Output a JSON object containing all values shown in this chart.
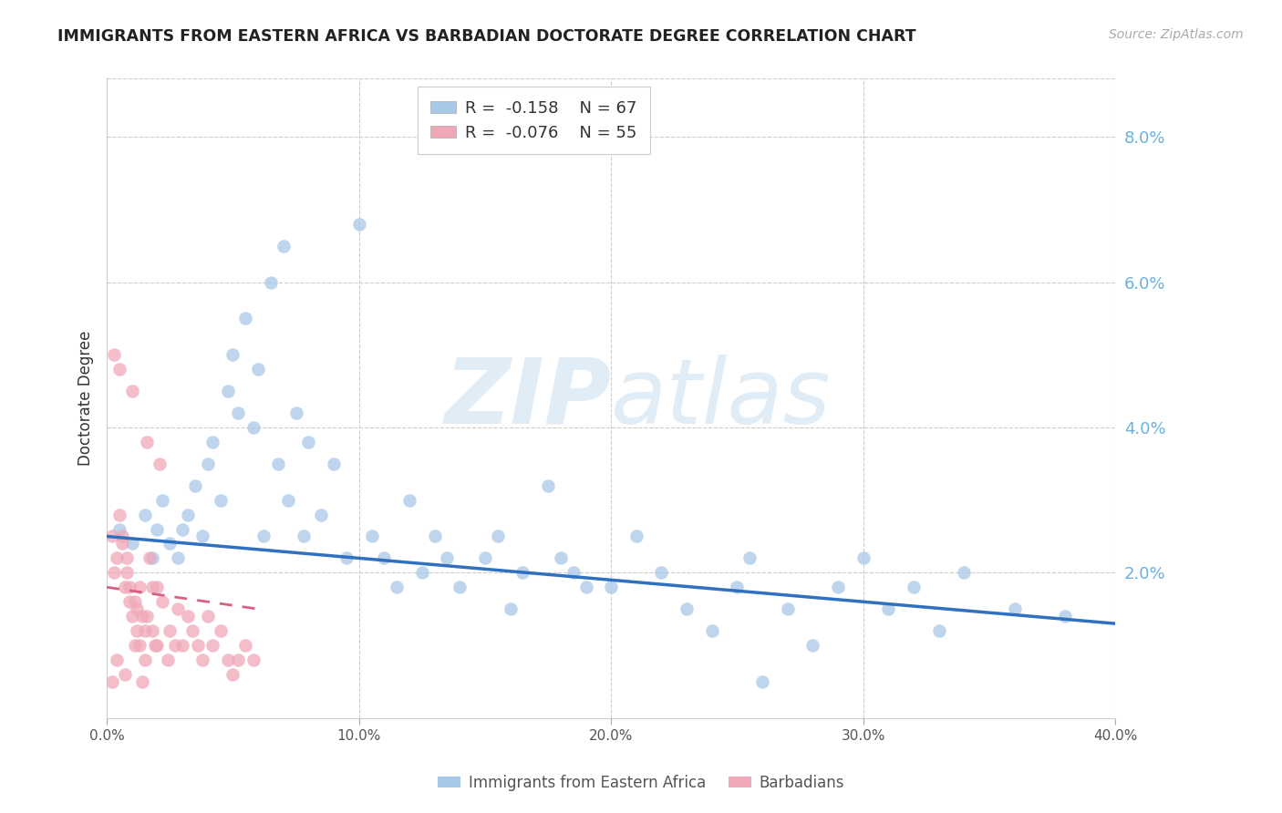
{
  "title": "IMMIGRANTS FROM EASTERN AFRICA VS BARBADIAN DOCTORATE DEGREE CORRELATION CHART",
  "source": "Source: ZipAtlas.com",
  "ylabel": "Doctorate Degree",
  "xlim": [
    0.0,
    0.4
  ],
  "ylim": [
    0.0,
    0.088
  ],
  "xticks": [
    0.0,
    0.1,
    0.2,
    0.3,
    0.4
  ],
  "xtick_labels": [
    "0.0%",
    "10.0%",
    "20.0%",
    "30.0%",
    "40.0%"
  ],
  "yticks_right": [
    0.02,
    0.04,
    0.06,
    0.08
  ],
  "ytick_right_labels": [
    "2.0%",
    "4.0%",
    "6.0%",
    "8.0%"
  ],
  "legend1_label": "Immigrants from Eastern Africa",
  "legend2_label": "Barbadians",
  "R1": -0.158,
  "N1": 67,
  "R2": -0.076,
  "N2": 55,
  "blue_color": "#a8c8e8",
  "pink_color": "#f0a8b8",
  "trend_blue": "#3070c0",
  "trend_pink": "#d86080",
  "watermark_zip": "ZIP",
  "watermark_atlas": "atlas",
  "blue_x": [
    0.005,
    0.01,
    0.015,
    0.018,
    0.02,
    0.022,
    0.025,
    0.028,
    0.03,
    0.032,
    0.035,
    0.038,
    0.04,
    0.042,
    0.045,
    0.048,
    0.05,
    0.052,
    0.055,
    0.058,
    0.06,
    0.062,
    0.065,
    0.068,
    0.07,
    0.072,
    0.075,
    0.078,
    0.08,
    0.085,
    0.09,
    0.095,
    0.1,
    0.105,
    0.11,
    0.115,
    0.12,
    0.125,
    0.13,
    0.135,
    0.14,
    0.15,
    0.155,
    0.16,
    0.165,
    0.175,
    0.18,
    0.185,
    0.19,
    0.2,
    0.21,
    0.22,
    0.23,
    0.24,
    0.25,
    0.255,
    0.26,
    0.27,
    0.28,
    0.29,
    0.3,
    0.31,
    0.32,
    0.33,
    0.34,
    0.36,
    0.38
  ],
  "blue_y": [
    0.026,
    0.024,
    0.028,
    0.022,
    0.026,
    0.03,
    0.024,
    0.022,
    0.026,
    0.028,
    0.032,
    0.025,
    0.035,
    0.038,
    0.03,
    0.045,
    0.05,
    0.042,
    0.055,
    0.04,
    0.048,
    0.025,
    0.06,
    0.035,
    0.065,
    0.03,
    0.042,
    0.025,
    0.038,
    0.028,
    0.035,
    0.022,
    0.068,
    0.025,
    0.022,
    0.018,
    0.03,
    0.02,
    0.025,
    0.022,
    0.018,
    0.022,
    0.025,
    0.015,
    0.02,
    0.032,
    0.022,
    0.02,
    0.018,
    0.018,
    0.025,
    0.02,
    0.015,
    0.012,
    0.018,
    0.022,
    0.005,
    0.015,
    0.01,
    0.018,
    0.022,
    0.015,
    0.018,
    0.012,
    0.02,
    0.015,
    0.014
  ],
  "pink_x": [
    0.002,
    0.003,
    0.004,
    0.005,
    0.006,
    0.007,
    0.008,
    0.009,
    0.01,
    0.011,
    0.012,
    0.013,
    0.014,
    0.015,
    0.016,
    0.017,
    0.018,
    0.019,
    0.02,
    0.021,
    0.003,
    0.005,
    0.006,
    0.008,
    0.009,
    0.01,
    0.012,
    0.013,
    0.015,
    0.016,
    0.018,
    0.02,
    0.022,
    0.024,
    0.025,
    0.027,
    0.028,
    0.03,
    0.032,
    0.034,
    0.036,
    0.038,
    0.04,
    0.042,
    0.045,
    0.048,
    0.05,
    0.052,
    0.055,
    0.058,
    0.002,
    0.004,
    0.007,
    0.011,
    0.014
  ],
  "pink_y": [
    0.025,
    0.02,
    0.022,
    0.048,
    0.024,
    0.018,
    0.022,
    0.018,
    0.045,
    0.016,
    0.015,
    0.018,
    0.014,
    0.012,
    0.038,
    0.022,
    0.018,
    0.01,
    0.018,
    0.035,
    0.05,
    0.028,
    0.025,
    0.02,
    0.016,
    0.014,
    0.012,
    0.01,
    0.008,
    0.014,
    0.012,
    0.01,
    0.016,
    0.008,
    0.012,
    0.01,
    0.015,
    0.01,
    0.014,
    0.012,
    0.01,
    0.008,
    0.014,
    0.01,
    0.012,
    0.008,
    0.006,
    0.008,
    0.01,
    0.008,
    0.005,
    0.008,
    0.006,
    0.01,
    0.005
  ]
}
